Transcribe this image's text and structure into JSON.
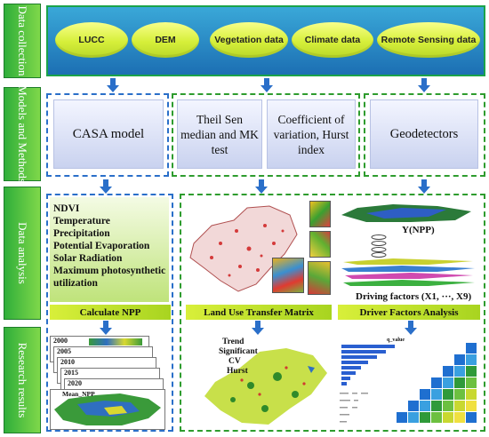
{
  "sidebar": {
    "data_collection": "Data collection",
    "models_methods": "Models and Methods",
    "data_analysis": "Data analysis",
    "research_results": "Research results"
  },
  "data_sources": [
    "LUCC",
    "DEM",
    "Vegetation data",
    "Climate data",
    "Remote Sensing data"
  ],
  "models": {
    "casa": "CASA model",
    "theil_sen": "Theil Sen median and MK test",
    "coef_var": "Coefficient of variation, Hurst index",
    "geodetectors": "Geodetectors"
  },
  "factors": [
    "NDVI",
    "Temperature",
    "Precipitation",
    "Potential Evaporation",
    "Solar Radiation",
    "Maximum photosynthetic utilization"
  ],
  "analysis": {
    "y_npp": "Y(NPP)",
    "driving_factors": "Driving factors (X1, ···, X9)"
  },
  "bars": {
    "calc_npp": "Calculate NPP",
    "land_use": "Land Use Transfer Matrix",
    "driver": "Driver Factors Analysis"
  },
  "results": {
    "years": [
      "2000",
      "2005",
      "2010",
      "2015",
      "2020"
    ],
    "mean_npp": "Mean_NPP",
    "trend_labels": [
      "Trend",
      "Significant",
      "CV",
      "Hurst"
    ],
    "qvalue": "q_value"
  },
  "colors": {
    "sidebar_green": "#2fae3a",
    "frame_green": "#2e9c2e",
    "frame_blue": "#2a6fc9",
    "arrow_blue": "#2a6fc9",
    "pill_yellow": "#d6ef3a"
  }
}
